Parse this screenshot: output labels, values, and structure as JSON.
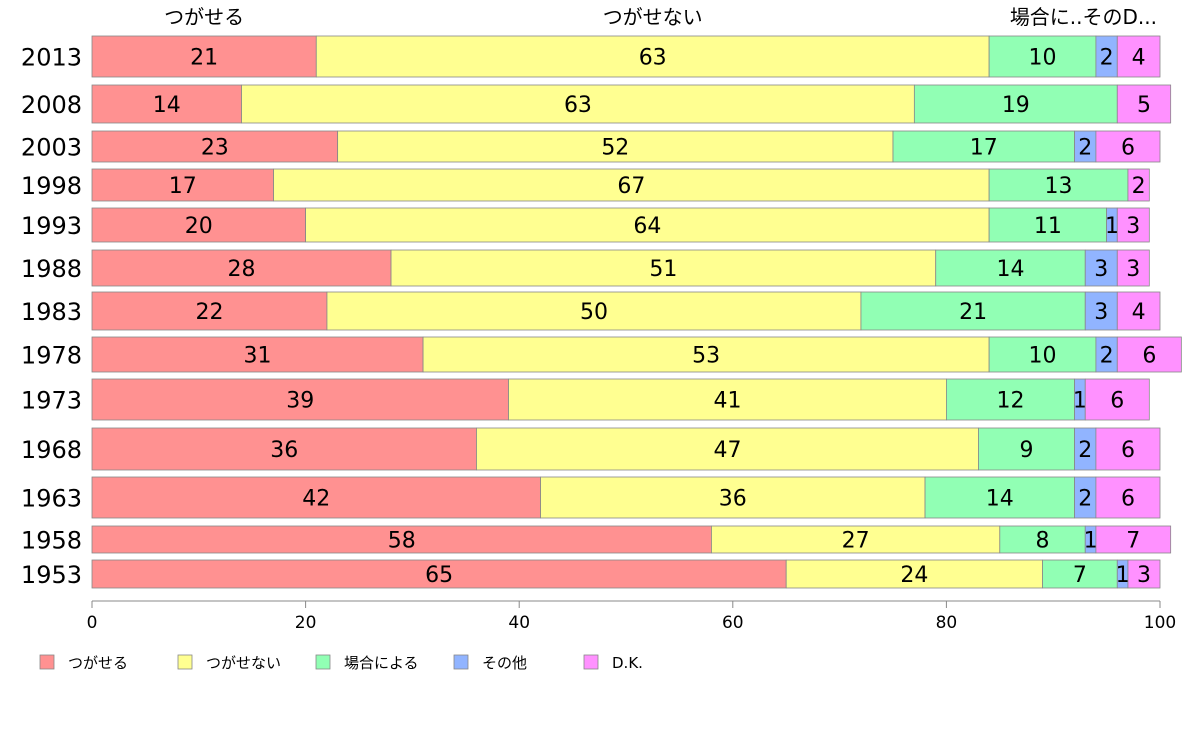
{
  "chart_data": {
    "type": "bar",
    "orientation": "horizontal",
    "stacked": true,
    "categories": [
      "2013",
      "2008",
      "2003",
      "1998",
      "1993",
      "1988",
      "1983",
      "1978",
      "1973",
      "1968",
      "1963",
      "1958",
      "1953"
    ],
    "series": [
      {
        "name": "つがせる",
        "color": "#ff9191",
        "values": [
          21,
          14,
          23,
          17,
          20,
          28,
          22,
          31,
          39,
          36,
          42,
          58,
          65
        ]
      },
      {
        "name": "つがせない",
        "color": "#ffff91",
        "values": [
          63,
          63,
          52,
          67,
          64,
          51,
          50,
          53,
          41,
          47,
          36,
          27,
          24
        ]
      },
      {
        "name": "場合による",
        "color": "#91ffb4",
        "values": [
          10,
          19,
          17,
          13,
          11,
          14,
          21,
          10,
          12,
          9,
          14,
          8,
          7
        ]
      },
      {
        "name": "その他",
        "color": "#91b4ff",
        "values": [
          2,
          0,
          2,
          0,
          1,
          3,
          3,
          2,
          1,
          2,
          2,
          1,
          1
        ]
      },
      {
        "name": "D.K.",
        "color": "#ff91ff",
        "values": [
          4,
          5,
          6,
          2,
          3,
          3,
          4,
          6,
          6,
          6,
          6,
          7,
          3
        ]
      }
    ],
    "top_labels": [
      "つがせる",
      "つがせない",
      "場合に..そのD..."
    ],
    "xlim": [
      0,
      100
    ],
    "xticks": [
      0,
      20,
      40,
      60,
      80,
      100
    ],
    "legend": {
      "position": "bottom-left",
      "entries": [
        "つがせる",
        "つがせない",
        "場合による",
        "その他",
        "D.K."
      ]
    },
    "grid": false
  }
}
